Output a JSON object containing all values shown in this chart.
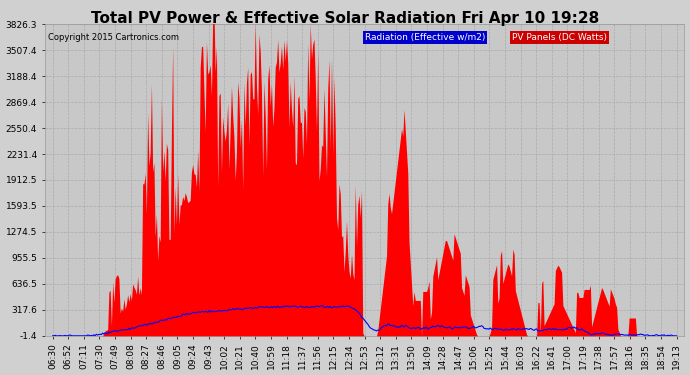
{
  "title": "Total PV Power & Effective Solar Radiation Fri Apr 10 19:28",
  "copyright": "Copyright 2015 Cartronics.com",
  "legend_radiation": "Radiation (Effective w/m2)",
  "legend_panels": "PV Panels (DC Watts)",
  "legend_radiation_color": "#0000cc",
  "legend_panels_color": "#cc0000",
  "y_ticks": [
    -1.4,
    317.6,
    636.5,
    955.5,
    1274.5,
    1593.5,
    1912.5,
    2231.4,
    2550.4,
    2869.4,
    3188.4,
    3507.4,
    3826.3
  ],
  "ylim": [
    -1.4,
    3826.3
  ],
  "plot_bg": "#c8c8c8",
  "fig_bg": "#d0d0d0",
  "grid_color": "#ffffff",
  "pv_color": "#ff0000",
  "rad_color": "#0000ff",
  "title_fontsize": 11,
  "tick_fontsize": 6.5,
  "x_labels": [
    "06:30",
    "06:52",
    "07:11",
    "07:30",
    "07:49",
    "08:08",
    "08:27",
    "08:46",
    "09:05",
    "09:24",
    "09:43",
    "10:02",
    "10:21",
    "10:40",
    "10:59",
    "11:18",
    "11:37",
    "11:56",
    "12:15",
    "12:34",
    "12:53",
    "13:12",
    "13:31",
    "13:50",
    "14:09",
    "14:28",
    "14:47",
    "15:06",
    "15:25",
    "15:44",
    "16:03",
    "16:22",
    "16:41",
    "17:00",
    "17:19",
    "17:38",
    "17:57",
    "18:16",
    "18:35",
    "18:54",
    "19:13"
  ],
  "n_samples": 500,
  "n_xticks": 41
}
